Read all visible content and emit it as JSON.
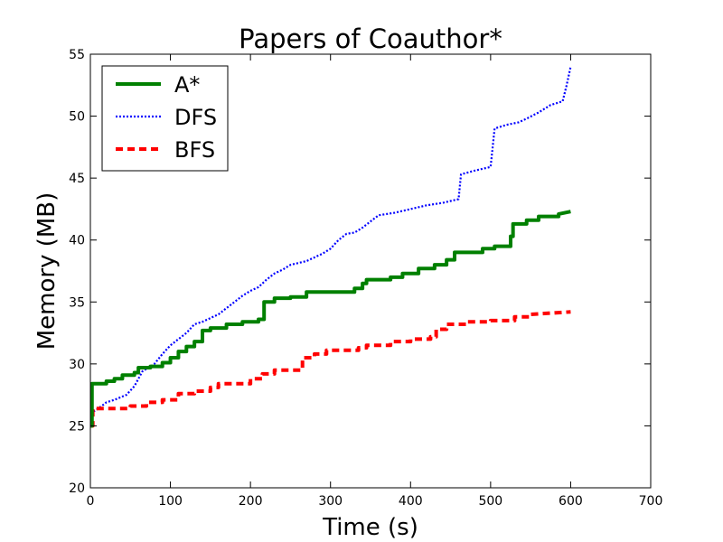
{
  "chart_data": {
    "type": "line",
    "title": "Papers of Coauthor*",
    "xlabel": "Time (s)",
    "ylabel": "Memory (MB)",
    "xlim": [
      0,
      700
    ],
    "ylim": [
      20,
      55
    ],
    "xticks": [
      0,
      100,
      200,
      300,
      400,
      500,
      600,
      700
    ],
    "yticks": [
      20,
      25,
      30,
      35,
      40,
      45,
      50,
      55
    ],
    "grid": false,
    "legend_position": "top-left",
    "series": [
      {
        "name": "A*",
        "color": "#008000",
        "style": "solid",
        "x": [
          0,
          2,
          2,
          20,
          20,
          30,
          30,
          40,
          40,
          55,
          55,
          60,
          60,
          75,
          75,
          90,
          90,
          100,
          100,
          110,
          110,
          120,
          120,
          130,
          130,
          140,
          140,
          150,
          150,
          170,
          170,
          190,
          190,
          210,
          210,
          217,
          217,
          230,
          230,
          250,
          250,
          270,
          270,
          330,
          330,
          340,
          340,
          345,
          345,
          375,
          375,
          390,
          390,
          410,
          410,
          430,
          430,
          445,
          445,
          455,
          455,
          490,
          490,
          505,
          505,
          525,
          525,
          528,
          528,
          545,
          545,
          560,
          560,
          585,
          585,
          600
        ],
        "y": [
          25.0,
          25.0,
          28.4,
          28.4,
          28.6,
          28.6,
          28.8,
          28.8,
          29.1,
          29.1,
          29.3,
          29.3,
          29.7,
          29.7,
          29.8,
          29.8,
          30.1,
          30.1,
          30.5,
          30.5,
          31.0,
          31.0,
          31.4,
          31.4,
          31.8,
          31.8,
          32.7,
          32.7,
          32.9,
          32.9,
          33.2,
          33.2,
          33.4,
          33.4,
          33.6,
          33.6,
          35.0,
          35.0,
          35.3,
          35.3,
          35.4,
          35.4,
          35.8,
          35.8,
          36.1,
          36.1,
          36.5,
          36.5,
          36.8,
          36.8,
          37.0,
          37.0,
          37.3,
          37.3,
          37.7,
          37.7,
          38.0,
          38.0,
          38.4,
          38.4,
          39.0,
          39.0,
          39.3,
          39.3,
          39.5,
          39.5,
          40.3,
          40.3,
          41.3,
          41.3,
          41.6,
          41.6,
          41.9,
          41.9,
          42.1,
          42.3
        ]
      },
      {
        "name": "DFS",
        "color": "#0000ff",
        "style": "dotted",
        "x": [
          0,
          10,
          20,
          30,
          45,
          55,
          65,
          80,
          90,
          100,
          110,
          120,
          130,
          140,
          150,
          160,
          170,
          180,
          190,
          200,
          210,
          220,
          230,
          240,
          250,
          270,
          290,
          300,
          310,
          320,
          330,
          340,
          350,
          360,
          380,
          400,
          420,
          440,
          460,
          463,
          480,
          500,
          505,
          520,
          535,
          545,
          560,
          575,
          590,
          595,
          600
        ],
        "y": [
          26.0,
          26.4,
          26.9,
          27.1,
          27.5,
          28.2,
          29.4,
          30.0,
          30.8,
          31.5,
          32.0,
          32.5,
          33.2,
          33.4,
          33.7,
          34.0,
          34.5,
          35.0,
          35.5,
          35.9,
          36.2,
          36.8,
          37.3,
          37.6,
          38.0,
          38.3,
          38.9,
          39.3,
          40.0,
          40.5,
          40.6,
          41.0,
          41.5,
          42.0,
          42.2,
          42.5,
          42.8,
          43.0,
          43.3,
          45.3,
          45.6,
          45.9,
          49.0,
          49.3,
          49.5,
          49.8,
          50.3,
          50.9,
          51.2,
          52.5,
          54.0
        ]
      },
      {
        "name": "BFS",
        "color": "#ff0000",
        "style": "dashed",
        "x": [
          0,
          3,
          3,
          50,
          50,
          70,
          70,
          90,
          90,
          110,
          110,
          130,
          130,
          150,
          150,
          160,
          160,
          200,
          200,
          215,
          215,
          230,
          230,
          265,
          265,
          280,
          280,
          295,
          295,
          335,
          335,
          345,
          345,
          375,
          375,
          400,
          400,
          425,
          425,
          432,
          432,
          445,
          445,
          470,
          470,
          500,
          500,
          530,
          530,
          550,
          550,
          600
        ],
        "y": [
          25.0,
          25.0,
          26.4,
          26.4,
          26.6,
          26.6,
          26.9,
          26.9,
          27.1,
          27.1,
          27.6,
          27.6,
          27.8,
          27.8,
          28.1,
          28.1,
          28.4,
          28.4,
          28.8,
          28.8,
          29.2,
          29.2,
          29.5,
          29.5,
          30.5,
          30.5,
          30.8,
          30.8,
          31.1,
          31.1,
          31.3,
          31.3,
          31.5,
          31.5,
          31.8,
          31.8,
          32.0,
          32.0,
          32.2,
          32.2,
          32.8,
          32.8,
          33.2,
          33.2,
          33.4,
          33.4,
          33.5,
          33.5,
          33.8,
          33.8,
          34.0,
          34.2
        ]
      }
    ]
  }
}
